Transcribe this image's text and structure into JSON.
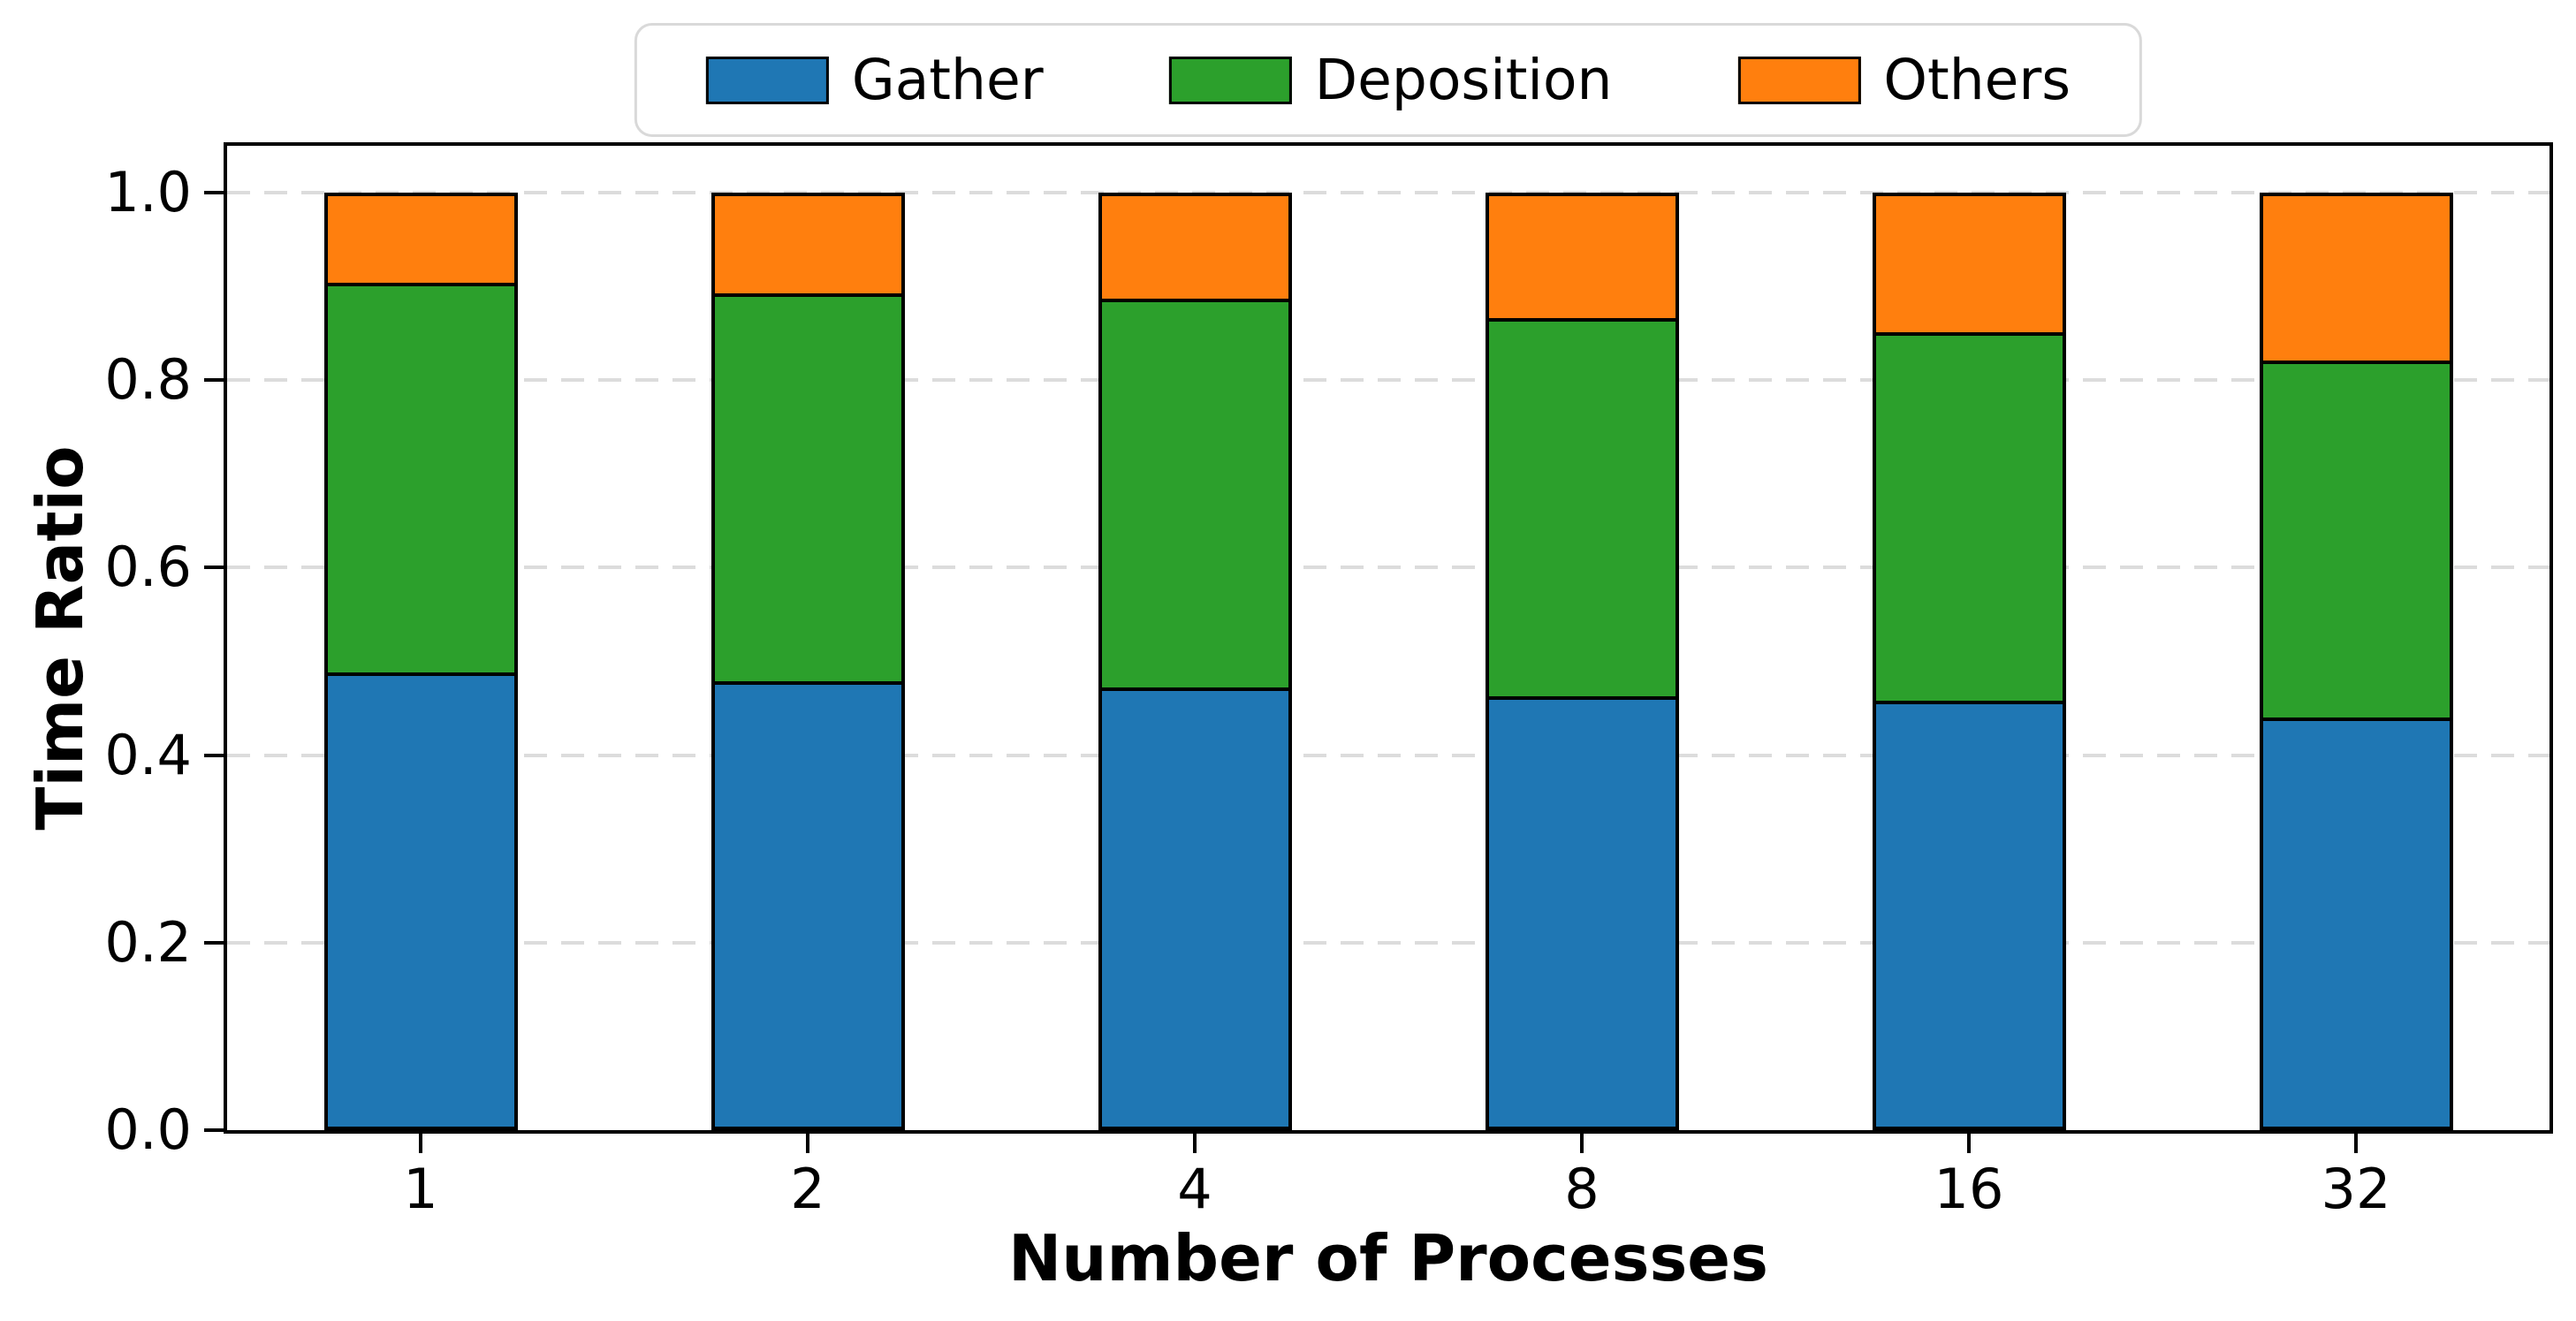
{
  "chart_data": {
    "type": "bar",
    "stacked": true,
    "title": "",
    "xlabel": "Number of Processes",
    "ylabel": "Time Ratio",
    "categories": [
      "1",
      "2",
      "4",
      "8",
      "16",
      "32"
    ],
    "series": [
      {
        "name": "Gather",
        "color": "#1f77b4",
        "values": [
          0.488,
          0.479,
          0.472,
          0.463,
          0.458,
          0.44
        ]
      },
      {
        "name": "Deposition",
        "color": "#2ca02c",
        "values": [
          0.416,
          0.414,
          0.415,
          0.403,
          0.393,
          0.381
        ]
      },
      {
        "name": "Others",
        "color": "#ff7f0e",
        "values": [
          0.096,
          0.107,
          0.113,
          0.134,
          0.149,
          0.179
        ]
      }
    ],
    "ylim": [
      0,
      1.05
    ],
    "yticks": [
      "0.0",
      "0.2",
      "0.4",
      "0.6",
      "0.8",
      "1.0"
    ],
    "ytick_values": [
      0.0,
      0.2,
      0.4,
      0.6,
      0.8,
      1.0
    ],
    "bar_width_fraction": 0.5,
    "bar_edge_color": "#000000",
    "grid": "horizontal dashed at y ticks",
    "grid_color": "#dcdcdc",
    "legend_position": "top center, horizontal",
    "background": "#ffffff"
  }
}
